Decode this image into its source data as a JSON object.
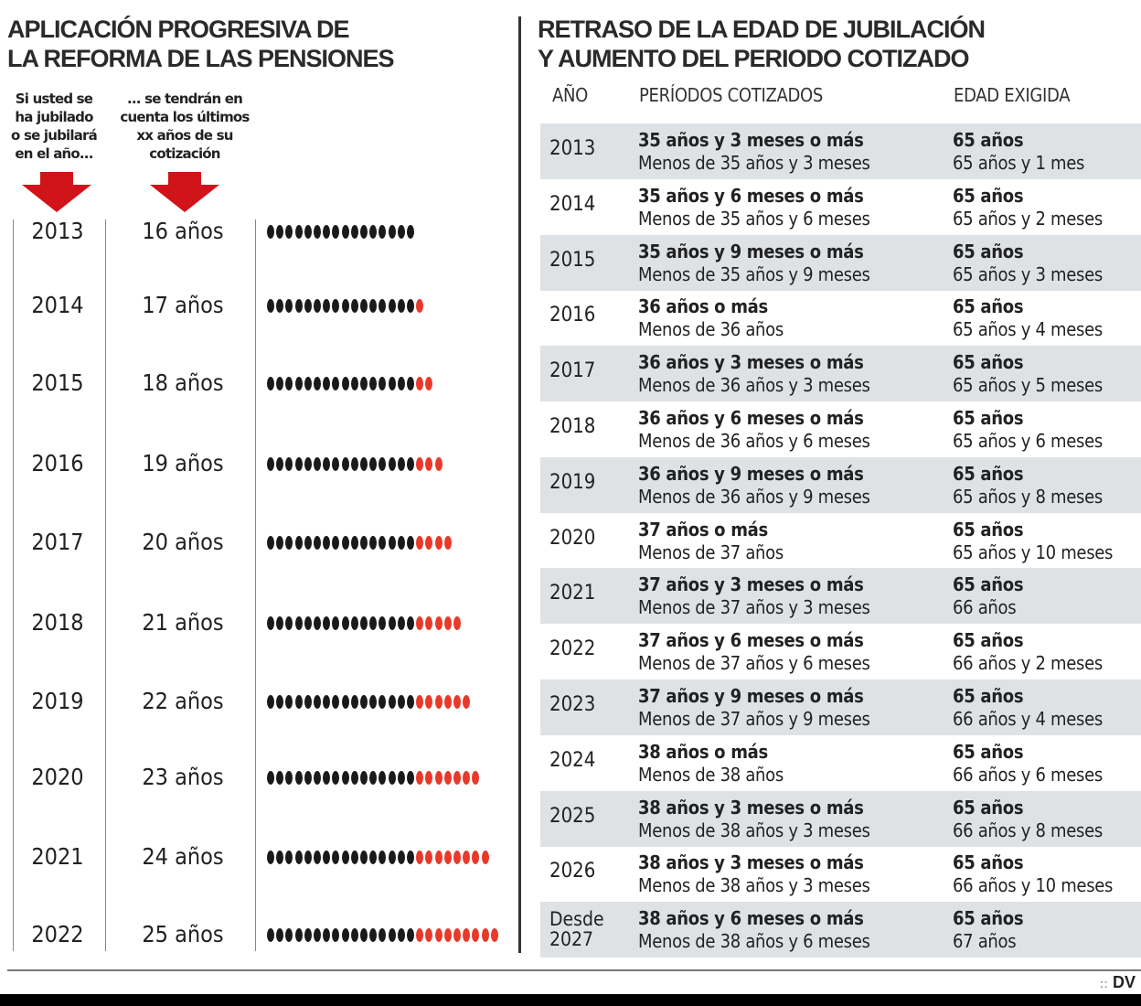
{
  "left": {
    "title_line1": "APLICACIÓN PROGRESIVA DE",
    "title_line2": "LA REFORMA DE LAS PENSIONES",
    "hint_year": [
      "Si usted se",
      "ha jubilado",
      "o se jubilará",
      "en el año..."
    ],
    "hint_years": [
      "... se tendrán en",
      "cuenta los últimos",
      "xx años de su",
      "cotización"
    ],
    "arrow_icon": "down-arrow",
    "arrow_color": "#d0141a"
  },
  "chart_data": {
    "type": "dot",
    "categories": [
      "2013",
      "2014",
      "2015",
      "2016",
      "2017",
      "2018",
      "2019",
      "2020",
      "2021",
      "2022"
    ],
    "values": [
      16,
      17,
      18,
      19,
      20,
      21,
      22,
      23,
      24,
      25
    ],
    "labels": [
      "16  años",
      "17 años",
      "18 años",
      "19 años",
      "20 años",
      "21 años",
      "22 años",
      "23 años",
      "24 años",
      "25 años"
    ],
    "base_value": 16,
    "base_color": "#1a1a1a",
    "added_color": "#e8392a"
  },
  "right": {
    "title_line1": "RETRASO DE LA EDAD DE JUBILACIÓN",
    "title_line2": "Y AUMENTO DEL PERIODO COTIZADO",
    "headers": [
      "AÑO",
      "PERÍODOS COTIZADOS",
      "EDAD EXIGIDA"
    ],
    "rows": [
      {
        "year": "2013",
        "p1": "35 años y 3 meses o más",
        "p2": "Menos de 35 años y 3 meses",
        "e1": "65 años",
        "e2": "65 años y 1 mes"
      },
      {
        "year": "2014",
        "p1": "35 años y 6 meses o más",
        "p2": "Menos de 35 años y 6 meses",
        "e1": "65 años",
        "e2": "65 años y 2 meses"
      },
      {
        "year": "2015",
        "p1": "35 años y 9 meses o más",
        "p2": "Menos de 35 años y 9 meses",
        "e1": "65 años",
        "e2": "65 años y 3 meses"
      },
      {
        "year": "2016",
        "p1": "36 años o más",
        "p2": "Menos de 36 años",
        "e1": "65 años",
        "e2": "65 años y 4 meses"
      },
      {
        "year": "2017",
        "p1": "36 años y 3 meses o más",
        "p2": "Menos de 36 años y 3 meses",
        "e1": "65 años",
        "e2": "65 años y 5 meses"
      },
      {
        "year": "2018",
        "p1": "36 años y 6 meses o más",
        "p2": "Menos de 36 años y 6 meses",
        "e1": "65 años",
        "e2": "65 años y 6 meses"
      },
      {
        "year": "2019",
        "p1": "36 años y 9 meses o más",
        "p2": "Menos de 36 años y 9 meses",
        "e1": "65 años",
        "e2": "65 años y 8 meses"
      },
      {
        "year": "2020",
        "p1": "37 años o más",
        "p2": "Menos de 37 años",
        "e1": "65 años",
        "e2": "65 años y 10 meses"
      },
      {
        "year": "2021",
        "p1": "37 años y 3 meses o más",
        "p2": "Menos de 37 años y 3 meses",
        "e1": "65 años",
        "e2": "66 años"
      },
      {
        "year": "2022",
        "p1": "37 años y 6 meses o más",
        "p2": "Menos de 37 años y 6 meses",
        "e1": "65 años",
        "e2": "66 años y 2 meses"
      },
      {
        "year": "2023",
        "p1": "37 años y 9 meses o más",
        "p2": "Menos de 37 años y 9 meses",
        "e1": "65 años",
        "e2": "66 años y 4 meses"
      },
      {
        "year": "2024",
        "p1": "38 años o más",
        "p2": "Menos de 38 años",
        "e1": "65 años",
        "e2": "66 años y 6 meses"
      },
      {
        "year": "2025",
        "p1": "38 años y 3 meses o más",
        "p2": "Menos de 38 años y 3 meses",
        "e1": "65 años",
        "e2": "66 años y 8 meses"
      },
      {
        "year": "2026",
        "p1": "38 años y 3 meses o más",
        "p2": "Menos de 38 años y 3 meses",
        "e1": "65 años",
        "e2": "66 años y 10 meses"
      },
      {
        "year": "Desde 2027",
        "p1": "38 años y 6 meses o más",
        "p2": "Menos de 38 años y 6 meses",
        "e1": "65 años",
        "e2": "67 años"
      }
    ],
    "row_shade_color": "#dfe2e5"
  },
  "footer": {
    "logo": "DV"
  }
}
